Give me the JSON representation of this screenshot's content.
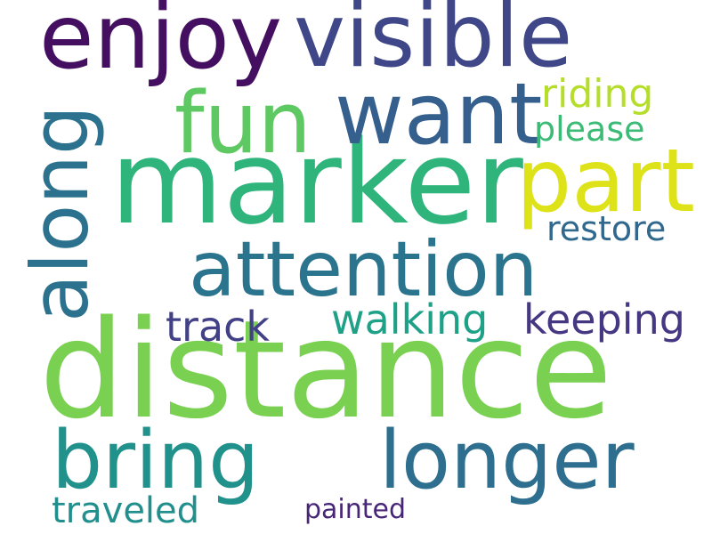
{
  "wordcloud": {
    "words": [
      {
        "text": "distance",
        "color": "#7ad151"
      },
      {
        "text": "marker",
        "color": "#2fb47c"
      },
      {
        "text": "enjoy",
        "color": "#440f61"
      },
      {
        "text": "visible",
        "color": "#3f4788"
      },
      {
        "text": "want",
        "color": "#355f8d"
      },
      {
        "text": "fun",
        "color": "#5ec962"
      },
      {
        "text": "part",
        "color": "#dde318"
      },
      {
        "text": "along",
        "color": "#2c728e"
      },
      {
        "text": "attention",
        "color": "#2b748e"
      },
      {
        "text": "bring",
        "color": "#21918c"
      },
      {
        "text": "longer",
        "color": "#2e6e8e"
      },
      {
        "text": "riding",
        "color": "#b5de2b"
      },
      {
        "text": "please",
        "color": "#3bbb75"
      },
      {
        "text": "restore",
        "color": "#31688e"
      },
      {
        "text": "track",
        "color": "#424086"
      },
      {
        "text": "walking",
        "color": "#1fa187"
      },
      {
        "text": "keeping",
        "color": "#453781"
      },
      {
        "text": "traveled",
        "color": "#218f8d"
      },
      {
        "text": "painted",
        "color": "#482677"
      }
    ]
  }
}
